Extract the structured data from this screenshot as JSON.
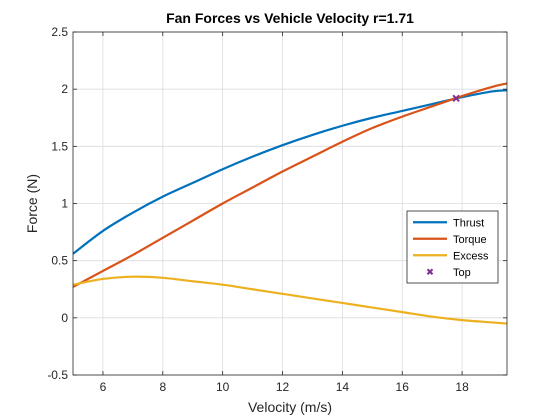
{
  "chart_data": {
    "type": "line",
    "title": "Fan Forces vs Vehicle Velocity r=1.71",
    "xlabel": "Velocity (m/s)",
    "ylabel": "Force (N)",
    "xlim": [
      5,
      19.5
    ],
    "ylim": [
      -0.5,
      2.5
    ],
    "xticks": [
      6,
      8,
      10,
      12,
      14,
      16,
      18
    ],
    "yticks": [
      -0.5,
      0,
      0.5,
      1,
      1.5,
      2,
      2.5
    ],
    "xtick_labels": [
      "6",
      "8",
      "10",
      "12",
      "14",
      "16",
      "18"
    ],
    "ytick_labels": [
      "-0.5",
      "0",
      "0.5",
      "1",
      "1.5",
      "2",
      "2.5"
    ],
    "grid": true,
    "legend_position": "right",
    "x": [
      5,
      6,
      7,
      8,
      9,
      10,
      11,
      12,
      13,
      14,
      15,
      16,
      17,
      18,
      19,
      19.5
    ],
    "series": [
      {
        "name": "Thrust",
        "color": "#0072BD",
        "values": [
          0.56,
          0.76,
          0.92,
          1.06,
          1.18,
          1.3,
          1.41,
          1.51,
          1.6,
          1.68,
          1.75,
          1.81,
          1.87,
          1.93,
          1.98,
          1.99
        ]
      },
      {
        "name": "Torque",
        "color": "#D95319",
        "values": [
          0.27,
          0.41,
          0.55,
          0.7,
          0.85,
          1.0,
          1.14,
          1.28,
          1.41,
          1.54,
          1.66,
          1.76,
          1.85,
          1.94,
          2.02,
          2.05
        ]
      },
      {
        "name": "Excess",
        "color": "#EDB120",
        "values": [
          0.29,
          0.34,
          0.36,
          0.35,
          0.32,
          0.29,
          0.25,
          0.21,
          0.17,
          0.13,
          0.09,
          0.05,
          0.01,
          -0.02,
          -0.04,
          -0.05
        ]
      }
    ],
    "markers": [
      {
        "name": "Top",
        "color": "#7E2F8E",
        "symbol": "x",
        "x": 17.8,
        "y": 1.92
      }
    ]
  }
}
